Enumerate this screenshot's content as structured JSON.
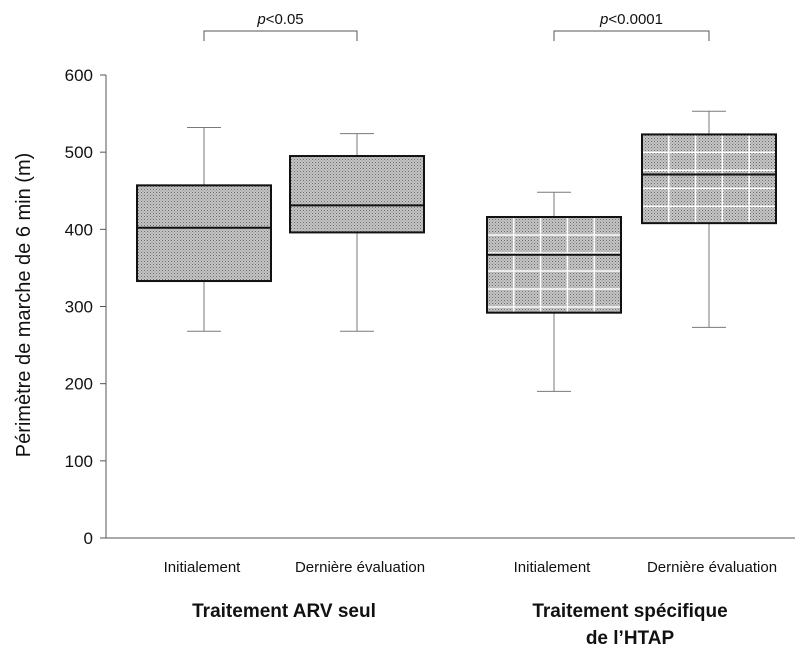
{
  "chart_data": {
    "type": "boxplot",
    "ylabel": "Périmètre de marche de 6 min (m)",
    "ylim": [
      0,
      600
    ],
    "yticks": [
      0,
      100,
      200,
      300,
      400,
      500,
      600
    ],
    "grid": false,
    "groups": [
      {
        "label_lines": [
          "Traitement ARV seul"
        ],
        "p_value": {
          "prefix": "p",
          "text": "<0.05"
        },
        "boxes": [
          {
            "label": "Initialement",
            "min": 268,
            "q1": 333,
            "median": 402,
            "q3": 457,
            "max": 532,
            "fill": "dotted"
          },
          {
            "label": "Dernière évaluation",
            "min": 268,
            "q1": 396,
            "median": 431,
            "q3": 495,
            "max": 524,
            "fill": "dotted"
          }
        ]
      },
      {
        "label_lines": [
          "Traitement spécifique",
          "de l’HTAP"
        ],
        "p_value": {
          "prefix": "p",
          "text": "<0.0001"
        },
        "boxes": [
          {
            "label": "Initialement",
            "min": 190,
            "q1": 292,
            "median": 367,
            "q3": 416,
            "max": 448,
            "fill": "checkered"
          },
          {
            "label": "Dernière évaluation",
            "min": 273,
            "q1": 408,
            "median": 471,
            "q3": 523,
            "max": 553,
            "fill": "checkered"
          }
        ]
      }
    ],
    "colors": {
      "box_fill": "#b4b4b4",
      "box_border": "#111111",
      "whisker": "#7a7a7a",
      "grid_lines_in_box": "#ffffff"
    }
  }
}
